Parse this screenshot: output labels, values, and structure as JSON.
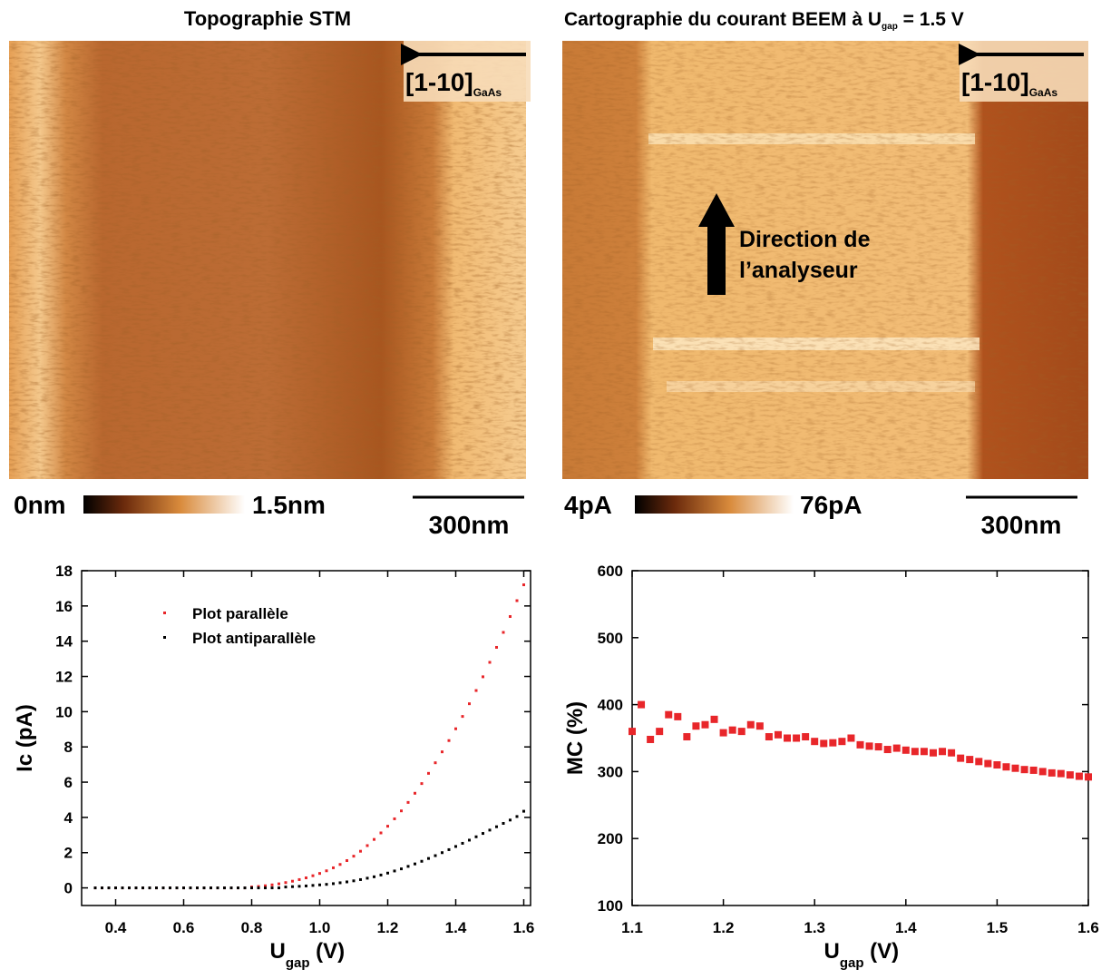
{
  "panels": [
    {
      "title": "Topographie STM",
      "arrow_label": "[1-10]",
      "arrow_label_subscript": "GaAs",
      "colorbar_min": "0nm",
      "colorbar_max": "1.5nm",
      "scale_bar": "300nm"
    },
    {
      "title": "Cartographie du courant BEEM à U",
      "title_subscript": "gap",
      "title_suffix": " = 1.5 V",
      "arrow_label": "[1-10]",
      "arrow_label_subscript": "GaAs",
      "direction_label": [
        "Direction de",
        "l’analyseur"
      ],
      "colorbar_min": "4pA",
      "colorbar_max": "76pA",
      "scale_bar": "300nm"
    }
  ],
  "chart_data": [
    {
      "type": "scatter",
      "ylabel": "Ic (pA)",
      "xlabel": "U",
      "xlabel_subscript": "gap",
      "xlabel_unit": " (V)",
      "xlim": [
        0.3,
        1.62
      ],
      "ylim": [
        -1,
        18
      ],
      "xticks": [
        0.4,
        0.6,
        0.8,
        {
          "value": 1,
          "label": "1.0"
        },
        1.2,
        1.4,
        1.6
      ],
      "yticks": [
        0,
        2,
        4,
        6,
        8,
        10,
        12,
        14,
        16,
        18
      ],
      "legend": "upper left",
      "x": [
        0.34,
        0.36,
        0.38,
        0.4,
        0.42,
        0.44,
        0.46,
        0.48,
        0.5,
        0.52,
        0.54,
        0.56,
        0.58,
        0.6,
        0.62,
        0.64,
        0.66,
        0.68,
        0.7,
        0.72,
        0.74,
        0.76,
        0.78,
        0.8,
        0.82,
        0.84,
        0.86,
        0.88,
        0.9,
        0.92,
        0.94,
        0.96,
        0.98,
        1.0,
        1.02,
        1.04,
        1.06,
        1.08,
        1.1,
        1.12,
        1.14,
        1.16,
        1.18,
        1.2,
        1.22,
        1.24,
        1.26,
        1.28,
        1.3,
        1.32,
        1.34,
        1.36,
        1.38,
        1.4,
        1.42,
        1.44,
        1.46,
        1.48,
        1.5,
        1.52,
        1.54,
        1.56,
        1.58,
        1.6
      ],
      "series": [
        {
          "name": "Plot parallèle",
          "color": "#e8262a",
          "values": [
            0,
            0,
            0,
            0,
            0,
            0,
            0,
            0,
            0,
            0,
            0,
            0,
            0,
            0,
            0,
            0,
            0,
            0,
            0,
            0,
            0,
            0,
            0,
            0.05,
            0.08,
            0.12,
            0.17,
            0.23,
            0.3,
            0.38,
            0.47,
            0.57,
            0.69,
            0.82,
            0.97,
            1.14,
            1.33,
            1.55,
            1.8,
            2.08,
            2.4,
            2.75,
            3.12,
            3.5,
            3.92,
            4.37,
            4.85,
            5.37,
            5.92,
            6.5,
            7.1,
            7.72,
            8.36,
            9.03,
            9.73,
            10.45,
            11.2,
            11.98,
            12.8,
            13.65,
            14.5,
            15.4,
            16.3,
            17.2
          ]
        },
        {
          "name": "Plot antiparallèle",
          "color": "#000000",
          "values": [
            0,
            0,
            0,
            0,
            0,
            0,
            0,
            0,
            0,
            0,
            0,
            0,
            0,
            0,
            0,
            0,
            0,
            0,
            0,
            0,
            0,
            0,
            0,
            0,
            0,
            0,
            0,
            0,
            0.05,
            0.07,
            0.09,
            0.11,
            0.14,
            0.17,
            0.2,
            0.24,
            0.29,
            0.34,
            0.4,
            0.47,
            0.55,
            0.63,
            0.73,
            0.84,
            0.96,
            1.08,
            1.22,
            1.36,
            1.51,
            1.67,
            1.83,
            2.0,
            2.17,
            2.35,
            2.53,
            2.71,
            2.9,
            3.09,
            3.28,
            3.47,
            3.66,
            3.85,
            4.05,
            4.35
          ]
        }
      ]
    },
    {
      "type": "scatter",
      "ylabel": "MC (%)",
      "xlabel": "U",
      "xlabel_subscript": "gap",
      "xlabel_unit": " (V)",
      "xlim": [
        1.1,
        1.6
      ],
      "ylim": [
        100,
        600
      ],
      "xticks": [
        1.1,
        1.2,
        1.3,
        1.4,
        1.5,
        1.6
      ],
      "yticks": [
        100,
        200,
        300,
        400,
        500,
        600
      ],
      "x": [
        1.1,
        1.11,
        1.12,
        1.13,
        1.14,
        1.15,
        1.16,
        1.17,
        1.18,
        1.19,
        1.2,
        1.21,
        1.22,
        1.23,
        1.24,
        1.25,
        1.26,
        1.27,
        1.28,
        1.29,
        1.3,
        1.31,
        1.32,
        1.33,
        1.34,
        1.35,
        1.36,
        1.37,
        1.38,
        1.39,
        1.4,
        1.41,
        1.42,
        1.43,
        1.44,
        1.45,
        1.46,
        1.47,
        1.48,
        1.49,
        1.5,
        1.51,
        1.52,
        1.53,
        1.54,
        1.55,
        1.56,
        1.57,
        1.58,
        1.59,
        1.6
      ],
      "series": [
        {
          "color": "#e8262a",
          "values": [
            360,
            400,
            348,
            360,
            385,
            382,
            352,
            368,
            370,
            378,
            358,
            362,
            360,
            370,
            368,
            352,
            355,
            350,
            350,
            352,
            345,
            342,
            343,
            345,
            350,
            340,
            338,
            337,
            333,
            335,
            332,
            330,
            330,
            328,
            330,
            328,
            320,
            318,
            315,
            312,
            310,
            307,
            305,
            303,
            302,
            300,
            298,
            297,
            295,
            293,
            292
          ]
        }
      ]
    }
  ]
}
